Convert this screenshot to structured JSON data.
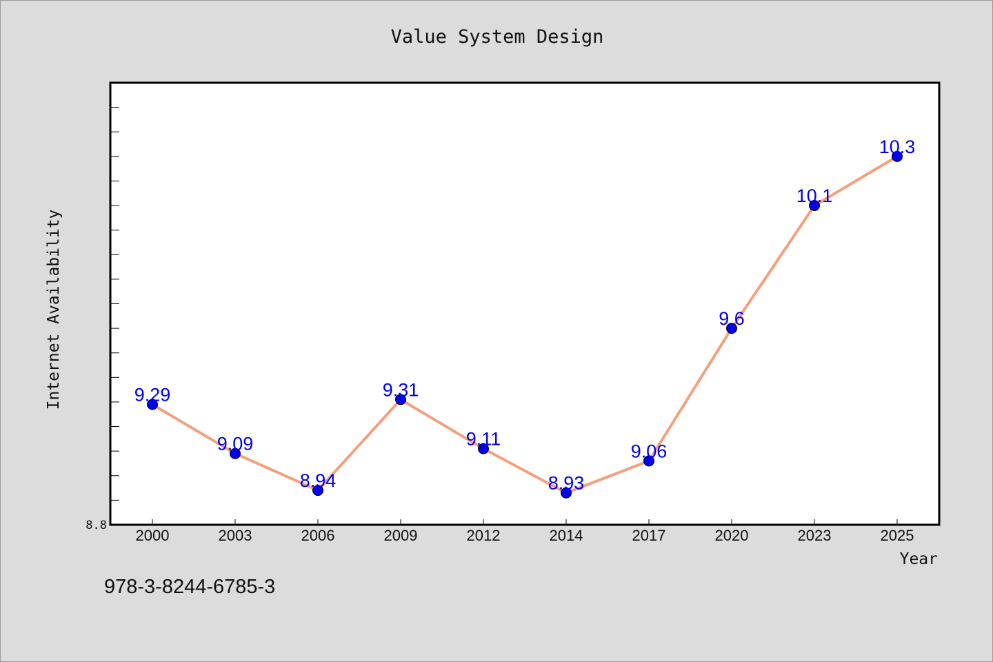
{
  "chart_data": {
    "type": "line",
    "title": "Value System Design",
    "xlabel": "Year",
    "ylabel": "Internet Availability",
    "categories": [
      "2000",
      "2003",
      "2006",
      "2009",
      "2012",
      "2014",
      "2017",
      "2020",
      "2023",
      "2025"
    ],
    "series": [
      {
        "values": [
          9.29,
          9.09,
          8.94,
          9.31,
          9.11,
          8.93,
          9.06,
          9.6,
          10.1,
          10.3
        ],
        "labels": [
          "9.29",
          "9.09",
          "8.94",
          "9.31",
          "9.11",
          "8.93",
          "9.06",
          "9.6",
          "10.1",
          "10.3"
        ]
      }
    ],
    "ylim": [
      8.8,
      10.6
    ],
    "yticks_labeled": [
      "8.8"
    ],
    "grid": false,
    "legend": "none",
    "colors": {
      "line": "#f4a07c",
      "marker": "#0000ee",
      "data_label": "#0000ee",
      "plot_background": "#ffffff",
      "figure_background": "#dcdcdc"
    }
  },
  "footer": {
    "isbn": "978-3-8244-6785-3"
  }
}
